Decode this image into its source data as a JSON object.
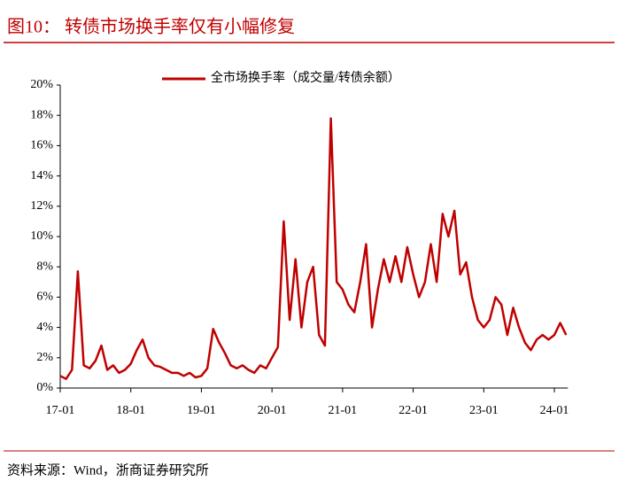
{
  "chart_data": {
    "type": "line",
    "title": "图10：  转债市场换手率仅有小幅修复",
    "source": "资料来源：Wind，浙商证券研究所",
    "x": [
      "17-01",
      "17-02",
      "17-03",
      "17-04",
      "17-05",
      "17-06",
      "17-07",
      "17-08",
      "17-09",
      "17-10",
      "17-11",
      "17-12",
      "18-01",
      "18-02",
      "18-03",
      "18-04",
      "18-05",
      "18-06",
      "18-07",
      "18-08",
      "18-09",
      "18-10",
      "18-11",
      "18-12",
      "19-01",
      "19-02",
      "19-03",
      "19-04",
      "19-05",
      "19-06",
      "19-07",
      "19-08",
      "19-09",
      "19-10",
      "19-11",
      "19-12",
      "20-01",
      "20-02",
      "20-03",
      "20-04",
      "20-05",
      "20-06",
      "20-07",
      "20-08",
      "20-09",
      "20-10",
      "20-11",
      "20-12",
      "21-01",
      "21-02",
      "21-03",
      "21-04",
      "21-05",
      "21-06",
      "21-07",
      "21-08",
      "21-09",
      "21-10",
      "21-11",
      "21-12",
      "22-01",
      "22-02",
      "22-03",
      "22-04",
      "22-05",
      "22-06",
      "22-07",
      "22-08",
      "22-09",
      "22-10",
      "22-11",
      "22-12",
      "23-01",
      "23-02",
      "23-03",
      "23-04",
      "23-05",
      "23-06",
      "23-07",
      "23-08",
      "23-09",
      "23-10",
      "23-11",
      "23-12",
      "24-01",
      "24-02",
      "24-03"
    ],
    "series": [
      {
        "name": "全市场换手率（成交量/转债余额）",
        "color": "#c00000",
        "values": [
          0.8,
          0.6,
          1.2,
          7.7,
          1.5,
          1.3,
          1.8,
          2.8,
          1.2,
          1.5,
          1.0,
          1.2,
          1.6,
          2.5,
          3.2,
          2.0,
          1.5,
          1.4,
          1.2,
          1.0,
          1.0,
          0.8,
          1.0,
          0.7,
          0.8,
          1.3,
          3.9,
          3.0,
          2.3,
          1.5,
          1.3,
          1.5,
          1.2,
          1.0,
          1.5,
          1.3,
          2.0,
          2.7,
          11.0,
          4.5,
          8.5,
          4.0,
          7.0,
          8.0,
          3.5,
          2.8,
          17.8,
          7.0,
          6.5,
          5.5,
          5.0,
          7.0,
          9.5,
          4.0,
          6.5,
          8.5,
          7.0,
          8.7,
          7.0,
          9.3,
          7.5,
          6.0,
          7.0,
          9.5,
          7.0,
          11.5,
          10.0,
          11.7,
          7.5,
          8.3,
          6.0,
          4.5,
          4.0,
          4.5,
          6.0,
          5.5,
          3.5,
          5.3,
          4.0,
          3.0,
          2.5,
          3.2,
          3.5,
          3.2,
          3.5,
          4.3,
          3.5
        ]
      }
    ],
    "ylim": [
      0,
      20
    ],
    "yticks": [
      {
        "value": 0,
        "label": "0%"
      },
      {
        "value": 2,
        "label": "2%"
      },
      {
        "value": 4,
        "label": "4%"
      },
      {
        "value": 6,
        "label": "6%"
      },
      {
        "value": 8,
        "label": "8%"
      },
      {
        "value": 10,
        "label": "10%"
      },
      {
        "value": 12,
        "label": "12%"
      },
      {
        "value": 14,
        "label": "14%"
      },
      {
        "value": 16,
        "label": "16%"
      },
      {
        "value": 18,
        "label": "18%"
      },
      {
        "value": 20,
        "label": "20%"
      }
    ],
    "grid": false,
    "legend": "top"
  }
}
